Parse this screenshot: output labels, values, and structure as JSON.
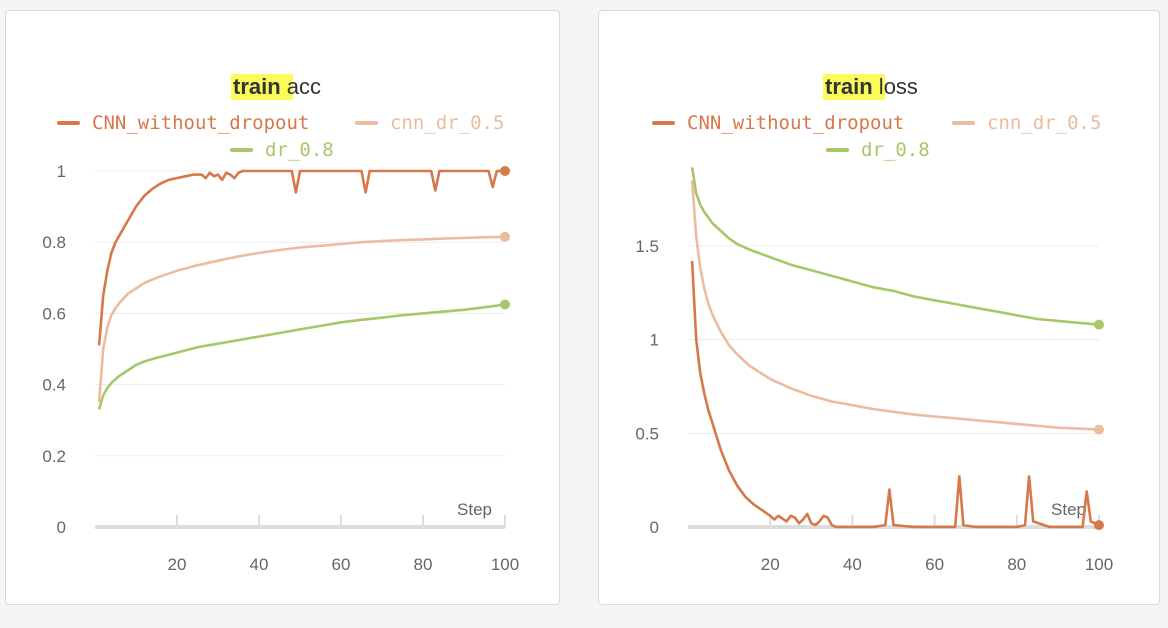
{
  "chart_data": [
    {
      "type": "line",
      "title_highlight": "train",
      "title_rest": " acc",
      "xlabel": "Step",
      "xlim": [
        0,
        100
      ],
      "ylim": [
        0,
        1
      ],
      "x_ticks": [
        20,
        40,
        60,
        80,
        100
      ],
      "y_ticks": [
        0,
        0.2,
        0.4,
        0.6,
        0.8,
        1
      ],
      "y_tick_labels": [
        "0",
        "0.2",
        "0.4",
        "0.6",
        "0.8",
        "1"
      ],
      "grid": true,
      "legend_position": "top",
      "series": [
        {
          "name": "CNN_without_dropout",
          "color": "#d6784a",
          "x": [
            1,
            2,
            3,
            4,
            5,
            6,
            8,
            10,
            12,
            14,
            16,
            18,
            20,
            22,
            24,
            26,
            27,
            28,
            29,
            30,
            31,
            32,
            33,
            34,
            35,
            36,
            38,
            40,
            45,
            48,
            49,
            50,
            55,
            60,
            65,
            66,
            67,
            70,
            75,
            80,
            82,
            83,
            84,
            88,
            92,
            96,
            97,
            98,
            100
          ],
          "y": [
            0.51,
            0.65,
            0.72,
            0.77,
            0.8,
            0.82,
            0.86,
            0.9,
            0.93,
            0.95,
            0.965,
            0.975,
            0.98,
            0.985,
            0.99,
            0.99,
            0.98,
            0.995,
            0.985,
            0.99,
            0.975,
            0.995,
            0.99,
            0.98,
            0.995,
            1.0,
            1.0,
            1.0,
            1.0,
            1.0,
            0.94,
            1.0,
            1.0,
            1.0,
            1.0,
            0.94,
            1.0,
            1.0,
            1.0,
            1.0,
            1.0,
            0.945,
            1.0,
            1.0,
            1.0,
            1.0,
            0.955,
            1.0,
            1.0
          ]
        },
        {
          "name": "cnn_dr_0.5",
          "color": "#ebbc9f",
          "x": [
            1,
            2,
            3,
            4,
            5,
            6,
            8,
            10,
            12,
            15,
            20,
            25,
            30,
            35,
            40,
            45,
            50,
            55,
            60,
            65,
            70,
            75,
            80,
            85,
            90,
            95,
            100
          ],
          "y": [
            0.35,
            0.5,
            0.56,
            0.595,
            0.615,
            0.63,
            0.655,
            0.67,
            0.685,
            0.7,
            0.72,
            0.735,
            0.748,
            0.76,
            0.77,
            0.778,
            0.785,
            0.79,
            0.795,
            0.8,
            0.803,
            0.806,
            0.808,
            0.81,
            0.812,
            0.814,
            0.815
          ]
        },
        {
          "name": "dr_0.8",
          "color": "#a6c76a",
          "x": [
            1,
            2,
            3,
            4,
            5,
            6,
            8,
            10,
            12,
            15,
            20,
            25,
            30,
            35,
            40,
            45,
            50,
            55,
            60,
            65,
            70,
            75,
            80,
            85,
            90,
            95,
            100
          ],
          "y": [
            0.33,
            0.37,
            0.39,
            0.405,
            0.415,
            0.425,
            0.44,
            0.455,
            0.465,
            0.475,
            0.49,
            0.505,
            0.515,
            0.525,
            0.535,
            0.545,
            0.555,
            0.565,
            0.575,
            0.582,
            0.588,
            0.595,
            0.6,
            0.605,
            0.61,
            0.617,
            0.625
          ]
        }
      ]
    },
    {
      "type": "line",
      "title_highlight": "train",
      "title_rest": " loss",
      "xlabel": "Step",
      "xlim": [
        0,
        100
      ],
      "ylim": [
        0,
        1.9
      ],
      "x_ticks": [
        20,
        40,
        60,
        80,
        100
      ],
      "y_ticks": [
        0,
        0.5,
        1,
        1.5
      ],
      "y_tick_labels": [
        "0",
        "0.5",
        "1",
        "1.5"
      ],
      "grid": true,
      "legend_position": "top",
      "series": [
        {
          "name": "CNN_without_dropout",
          "color": "#d6784a",
          "x": [
            1,
            2,
            3,
            4,
            5,
            6,
            7,
            8,
            10,
            12,
            14,
            16,
            18,
            20,
            21,
            22,
            24,
            25,
            26,
            27,
            28,
            29,
            30,
            31,
            32,
            33,
            34,
            35,
            36,
            38,
            40,
            45,
            48,
            49,
            50,
            55,
            60,
            65,
            66,
            67,
            70,
            75,
            80,
            82,
            83,
            84,
            88,
            92,
            96,
            97,
            98,
            100
          ],
          "y": [
            1.42,
            1.0,
            0.82,
            0.71,
            0.62,
            0.55,
            0.48,
            0.41,
            0.3,
            0.22,
            0.16,
            0.12,
            0.09,
            0.06,
            0.04,
            0.06,
            0.03,
            0.06,
            0.05,
            0.02,
            0.04,
            0.07,
            0.02,
            0.01,
            0.03,
            0.06,
            0.05,
            0.01,
            0.0,
            0.0,
            0.0,
            0.0,
            0.01,
            0.2,
            0.01,
            0.0,
            0.0,
            0.0,
            0.27,
            0.01,
            0.0,
            0.0,
            0.0,
            0.01,
            0.27,
            0.03,
            0.0,
            0.0,
            0.0,
            0.19,
            0.03,
            0.01
          ]
        },
        {
          "name": "cnn_dr_0.5",
          "color": "#ebbc9f",
          "x": [
            1,
            2,
            3,
            4,
            5,
            6,
            8,
            10,
            12,
            15,
            20,
            25,
            30,
            35,
            40,
            45,
            50,
            55,
            60,
            65,
            70,
            75,
            80,
            85,
            90,
            95,
            100
          ],
          "y": [
            1.85,
            1.55,
            1.38,
            1.27,
            1.19,
            1.13,
            1.04,
            0.97,
            0.92,
            0.86,
            0.79,
            0.74,
            0.7,
            0.67,
            0.65,
            0.63,
            0.615,
            0.6,
            0.59,
            0.58,
            0.57,
            0.56,
            0.55,
            0.54,
            0.53,
            0.525,
            0.52
          ]
        },
        {
          "name": "dr_0.8",
          "color": "#a6c76a",
          "x": [
            1,
            2,
            3,
            4,
            5,
            6,
            8,
            10,
            12,
            15,
            20,
            25,
            30,
            35,
            40,
            45,
            50,
            55,
            60,
            65,
            70,
            75,
            80,
            85,
            90,
            95,
            100
          ],
          "y": [
            1.92,
            1.78,
            1.72,
            1.68,
            1.65,
            1.62,
            1.58,
            1.54,
            1.51,
            1.48,
            1.44,
            1.4,
            1.37,
            1.34,
            1.31,
            1.28,
            1.26,
            1.23,
            1.21,
            1.19,
            1.17,
            1.15,
            1.13,
            1.11,
            1.1,
            1.09,
            1.08
          ]
        }
      ]
    }
  ]
}
